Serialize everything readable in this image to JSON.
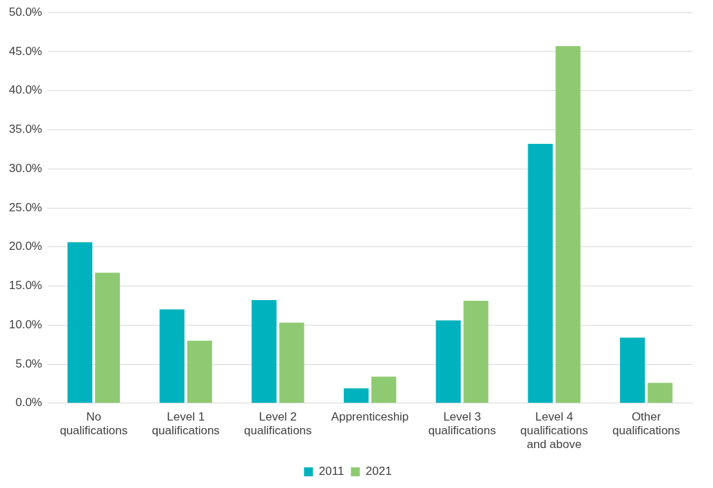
{
  "chart_data": {
    "type": "bar",
    "categories": [
      "No qualifications",
      "Level 1 qualifications",
      "Level 2 qualifications",
      "Apprenticeship",
      "Level 3 qualifications",
      "Level 4 qualifications and above",
      "Other qualifications"
    ],
    "series": [
      {
        "name": "2011",
        "color": "#00b2bd",
        "values": [
          20.6,
          12.0,
          13.2,
          1.9,
          10.6,
          33.2,
          8.4
        ]
      },
      {
        "name": "2021",
        "color": "#8fca72",
        "values": [
          16.7,
          8.0,
          10.3,
          3.4,
          13.1,
          45.7,
          2.6
        ]
      }
    ],
    "ylim": [
      0,
      50
    ],
    "yticks": [
      {
        "value": 0,
        "label": "0.0%"
      },
      {
        "value": 5,
        "label": "5.0%"
      },
      {
        "value": 10,
        "label": "10.0%"
      },
      {
        "value": 15,
        "label": "15.0%"
      },
      {
        "value": 20,
        "label": "20.0%"
      },
      {
        "value": 25,
        "label": "25.0%"
      },
      {
        "value": 30,
        "label": "30.0%"
      },
      {
        "value": 35,
        "label": "35.0%"
      },
      {
        "value": 40,
        "label": "40.0%"
      },
      {
        "value": 45,
        "label": "45.0%"
      },
      {
        "value": 50,
        "label": "50.0%"
      }
    ],
    "grid": "y",
    "legend": "bottom"
  }
}
